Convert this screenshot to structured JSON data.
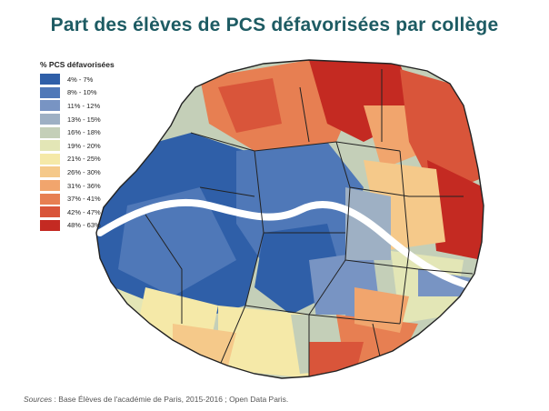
{
  "title": "Part des élèves de PCS défavorisées par collège",
  "legend": {
    "title": "% PCS défavorisées",
    "items": [
      {
        "label": "4% - 7%",
        "color": "#2f5fa8"
      },
      {
        "label": "8% - 10%",
        "color": "#4f78b8"
      },
      {
        "label": "11% - 12%",
        "color": "#7894c3"
      },
      {
        "label": "13% - 15%",
        "color": "#9eb0c4"
      },
      {
        "label": "16% - 18%",
        "color": "#c4cfb8"
      },
      {
        "label": "19% - 20%",
        "color": "#e3e6b6"
      },
      {
        "label": "21% - 25%",
        "color": "#f5e9a8"
      },
      {
        "label": "26% - 30%",
        "color": "#f5c98a"
      },
      {
        "label": "31% - 36%",
        "color": "#f1a56d"
      },
      {
        "label": "37% - 41%",
        "color": "#e77f52"
      },
      {
        "label": "42% - 47%",
        "color": "#d9553a"
      },
      {
        "label": "48% - 63%",
        "color": "#c42a22"
      }
    ]
  },
  "source": {
    "prefix": "Sources",
    "text": " : Base Élèves de l'académie de Paris, 2015-2016 ; Open Data Paris."
  }
}
